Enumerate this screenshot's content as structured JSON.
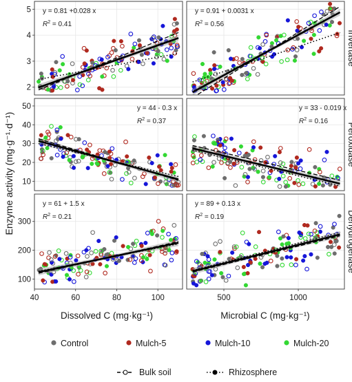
{
  "chart_data": {
    "type": "scatter",
    "ylabel": "Enzyme activity (mg·g⁻¹·d⁻¹)",
    "xlabels": [
      "Dissolved C (mg·kg⁻¹)",
      "Microbial C (mg·kg⁻¹)"
    ],
    "row_labels": [
      "Invertase",
      "Peroxidase",
      "Dehydrogenase"
    ],
    "x_axes": [
      {
        "range": [
          40,
          112
        ],
        "ticks": [
          40,
          60,
          80,
          100
        ]
      },
      {
        "range": [
          250,
          1310
        ],
        "ticks": [
          500,
          1000
        ]
      }
    ],
    "y_axes": [
      {
        "range": [
          1.7,
          5.3
        ],
        "ticks": [
          2,
          3,
          4,
          5
        ]
      },
      {
        "range": [
          5,
          54
        ],
        "ticks": [
          10,
          20,
          30,
          40,
          50
        ]
      },
      {
        "range": [
          65,
          395
        ],
        "ticks": [
          100,
          200,
          300
        ]
      }
    ],
    "legend": {
      "placement": "bottom",
      "treatments": [
        {
          "name": "Control",
          "color": "#6e6e6e"
        },
        {
          "name": "Mulch-5",
          "color": "#b0291f"
        },
        {
          "name": "Mulch-10",
          "color": "#1616d9"
        },
        {
          "name": "Mulch-20",
          "color": "#33d833"
        }
      ],
      "locations": [
        {
          "name": "Bulk soil",
          "line": "dashed",
          "marker": "open circle"
        },
        {
          "name": "Rhizosphere",
          "line": "dotted",
          "marker": "filled circle"
        }
      ]
    },
    "panels": [
      {
        "row": 0,
        "col": 0,
        "equation": "y = 0.81 +0.028 x",
        "r2": "0.41",
        "eq_pos": "top-left",
        "fit": {
          "x": [
            42,
            110
          ],
          "y": [
            1.99,
            3.89
          ]
        },
        "bulk_fit": {
          "x": [
            42,
            110
          ],
          "y": [
            1.9,
            4.1
          ]
        },
        "rhizo_fit": {
          "x": [
            42,
            110
          ],
          "y": [
            2.3,
            3.3
          ]
        }
      },
      {
        "row": 0,
        "col": 1,
        "equation": "y = 0.91 + 0.0031 x",
        "r2": "0.56",
        "eq_pos": "top-left",
        "fit": {
          "x": [
            290,
            1280
          ],
          "y": [
            1.81,
            4.88
          ]
        },
        "bulk_fit": {
          "x": [
            290,
            1280
          ],
          "y": [
            1.6,
            5.1
          ]
        },
        "rhizo_fit": {
          "x": [
            290,
            1280
          ],
          "y": [
            2.2,
            4.1
          ]
        }
      },
      {
        "row": 1,
        "col": 0,
        "equation": "y = 44 - 0.3 x",
        "r2": "0.37",
        "eq_pos": "top-right",
        "fit": {
          "x": [
            42,
            110
          ],
          "y": [
            31.4,
            11.0
          ]
        },
        "bulk_fit": {
          "x": [
            42,
            110
          ],
          "y": [
            32.5,
            10.5
          ]
        },
        "rhizo_fit": {
          "x": [
            42,
            110
          ],
          "y": [
            30.0,
            12.5
          ]
        }
      },
      {
        "row": 1,
        "col": 1,
        "equation": "y = 33 - 0.019 x",
        "r2": "0.16",
        "eq_pos": "top-right",
        "fit": {
          "x": [
            290,
            1280
          ],
          "y": [
            27.5,
            8.7
          ]
        },
        "bulk_fit": {
          "x": [
            290,
            1280
          ],
          "y": [
            29.0,
            10.5
          ]
        },
        "rhizo_fit": {
          "x": [
            290,
            1280
          ],
          "y": [
            26.5,
            7.5
          ]
        }
      },
      {
        "row": 2,
        "col": 0,
        "equation": "y = 61 + 1.5 x",
        "r2": "0.21",
        "eq_pos": "top-left",
        "fit": {
          "x": [
            42,
            110
          ],
          "y": [
            124,
            226
          ]
        },
        "bulk_fit": {
          "x": [
            42,
            110
          ],
          "y": [
            120,
            230
          ]
        },
        "rhizo_fit": {
          "x": [
            42,
            110
          ],
          "y": [
            127,
            222
          ]
        }
      },
      {
        "row": 2,
        "col": 1,
        "equation": "y = 89 + 0.13 x",
        "r2": "0.19",
        "eq_pos": "top-left",
        "fit": {
          "x": [
            290,
            1280
          ],
          "y": [
            127,
            255
          ]
        },
        "bulk_fit": {
          "x": [
            290,
            1280
          ],
          "y": [
            124,
            250
          ]
        },
        "rhizo_fit": {
          "x": [
            290,
            1280
          ],
          "y": [
            130,
            262
          ]
        }
      }
    ]
  }
}
